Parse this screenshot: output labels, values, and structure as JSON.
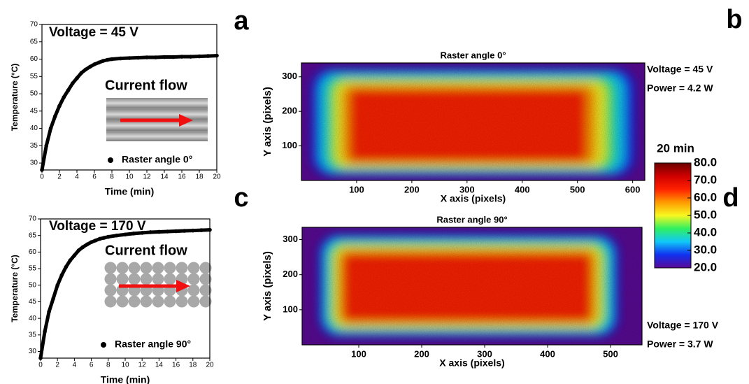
{
  "chart_data": [
    {
      "type": "line",
      "panel": "a",
      "title": "Voltage = 45 V",
      "annotation": "Current flow",
      "xlabel": "Time (min)",
      "ylabel": "Temperature (°C)",
      "x": [
        0,
        0.5,
        1,
        1.5,
        2,
        2.5,
        3,
        3.5,
        4,
        4.5,
        5,
        5.5,
        6,
        6.5,
        7,
        7.5,
        8,
        9,
        10,
        11,
        12,
        13,
        14,
        15,
        16,
        17,
        18,
        19,
        20
      ],
      "series": [
        {
          "name": "Raster angle 0°",
          "color": "#000000",
          "values": [
            28,
            35,
            40,
            43.5,
            46.5,
            49,
            51,
            53,
            54.5,
            56,
            57,
            57.8,
            58.5,
            59,
            59.5,
            59.8,
            60,
            60.2,
            60.3,
            60.4,
            60.5,
            60.5,
            60.6,
            60.6,
            60.7,
            60.7,
            60.8,
            60.9,
            61
          ]
        }
      ],
      "xlim": [
        0,
        20
      ],
      "xticks": [
        0,
        2,
        4,
        6,
        8,
        10,
        12,
        14,
        16,
        18,
        20
      ],
      "ylim": [
        28,
        70
      ],
      "yticks": [
        30,
        35,
        40,
        45,
        50,
        55,
        60,
        65,
        70
      ]
    },
    {
      "type": "line",
      "title": "Voltage = 170 V",
      "annotation": "Current flow",
      "xlabel": "Time (min)",
      "ylabel": "Temperature (°C)",
      "x": [
        0,
        0.5,
        1,
        1.5,
        2,
        2.5,
        3,
        3.5,
        4,
        4.5,
        5,
        5.5,
        6,
        6.5,
        7,
        7.5,
        8,
        9,
        10,
        11,
        12,
        13,
        14,
        15,
        16,
        17,
        18,
        19,
        20
      ],
      "series": [
        {
          "name": "Raster angle 90°",
          "color": "#000000",
          "values": [
            28,
            36,
            42,
            46,
            50,
            53,
            55.5,
            57.5,
            59,
            60.5,
            61.5,
            62.3,
            63,
            63.5,
            64,
            64.3,
            64.6,
            65,
            65.3,
            65.6,
            65.8,
            66,
            66.1,
            66.2,
            66.3,
            66.4,
            66.5,
            66.6,
            66.7
          ]
        }
      ],
      "xlim": [
        0,
        20
      ],
      "xticks": [
        0,
        2,
        4,
        6,
        8,
        10,
        12,
        14,
        16,
        18,
        20
      ],
      "ylim": [
        28,
        70
      ],
      "yticks": [
        30,
        35,
        40,
        45,
        50,
        55,
        60,
        65,
        70
      ]
    },
    {
      "type": "heatmap",
      "panel": "b",
      "title": "Raster angle 0°",
      "xlabel": "X axis (pixels)",
      "ylabel": "Y axis (pixels)",
      "annotations": [
        "Voltage = 45 V",
        "Power = 4.2 W"
      ],
      "xlim": [
        0,
        622
      ],
      "xticks": [
        100,
        200,
        300,
        400,
        500,
        600
      ],
      "ylim": [
        0,
        340
      ],
      "yticks": [
        100,
        200,
        300
      ]
    },
    {
      "type": "heatmap",
      "panel": "c",
      "title": "Raster angle 90°",
      "xlabel": "X axis (pixels)",
      "ylabel": "Y axis (pixels)",
      "annotations": [
        "Voltage = 170 V",
        "Power = 3.7 W"
      ],
      "xlim": [
        10,
        550
      ],
      "xticks": [
        100,
        200,
        300,
        400,
        500
      ],
      "ylim": [
        0,
        335
      ],
      "yticks": [
        100,
        200,
        300
      ]
    },
    {
      "type": "colorbar",
      "panel": "d",
      "title": "20 min",
      "colors": [
        "#5a0a96",
        "#1030f0",
        "#10c8f8",
        "#30f060",
        "#f8f820",
        "#ff9a00",
        "#ff2000",
        "#d00000",
        "#6a0000"
      ],
      "ylim": [
        20,
        80
      ],
      "yticks": [
        {
          "value": 20,
          "label": "20.0"
        },
        {
          "value": 30,
          "label": "30.0"
        },
        {
          "value": 40,
          "label": "40.0"
        },
        {
          "value": 50,
          "label": "50.0"
        },
        {
          "value": 60,
          "label": "60.0"
        },
        {
          "value": 70,
          "label": "70.0"
        },
        {
          "value": 80,
          "label": "80.0"
        }
      ]
    }
  ]
}
